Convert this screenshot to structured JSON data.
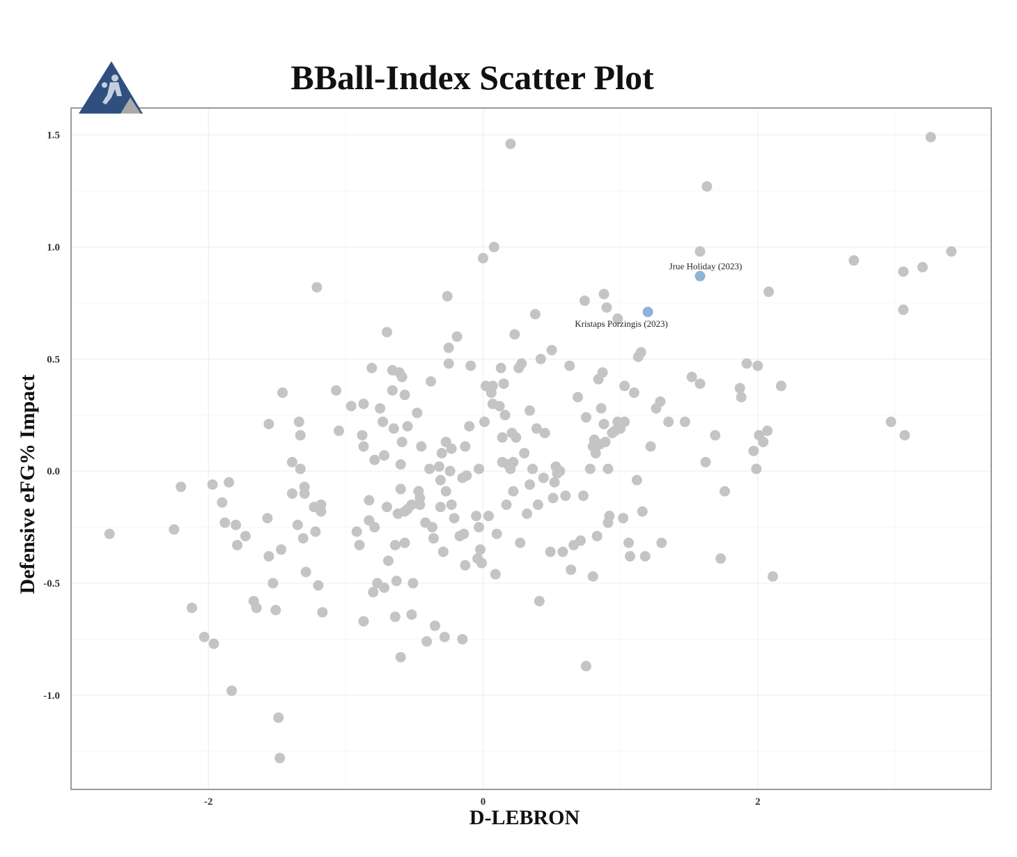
{
  "chart_data": {
    "type": "scatter",
    "title": "BBall-Index Scatter Plot",
    "xlabel": "D-LEBRON",
    "ylabel": "Defensive eFG% Impact",
    "xlim": [
      -3.0,
      3.7
    ],
    "ylim": [
      -1.42,
      1.62
    ],
    "xticks": [
      -2,
      0,
      2
    ],
    "yticks": [
      1.5,
      1.0,
      0.5,
      0.0,
      -0.5,
      -1.0
    ],
    "xtick_labels": [
      "-2",
      "0",
      "2"
    ],
    "ytick_labels": [
      "1.5",
      "1.0",
      "0.5",
      "0.0",
      "-0.5",
      "-1.0"
    ],
    "grid": true,
    "legend": "none",
    "colors": {
      "point": "#c4c4c4",
      "highlight": "#8fb3d8",
      "frame": "#9a9a9a",
      "logo_blue": "#2f4f7f",
      "logo_gray": "#a9a9a9"
    },
    "highlighted": [
      {
        "label": "Jrue Holiday (2023)",
        "x": 1.58,
        "y": 0.87
      },
      {
        "label": "Kristaps Porzingis (2023)",
        "x": 1.2,
        "y": 0.71
      }
    ],
    "points": [
      [
        -2.72,
        -0.28
      ],
      [
        -2.25,
        -0.26
      ],
      [
        -2.2,
        -0.07
      ],
      [
        -2.12,
        -0.61
      ],
      [
        -2.03,
        -0.74
      ],
      [
        -1.96,
        -0.77
      ],
      [
        -1.97,
        -0.06
      ],
      [
        -1.9,
        -0.14
      ],
      [
        -1.88,
        -0.23
      ],
      [
        -1.85,
        -0.05
      ],
      [
        -1.83,
        -0.98
      ],
      [
        -1.8,
        -0.24
      ],
      [
        -1.79,
        -0.33
      ],
      [
        -1.73,
        -0.29
      ],
      [
        -1.67,
        -0.58
      ],
      [
        -1.65,
        -0.61
      ],
      [
        -1.57,
        -0.21
      ],
      [
        -1.56,
        -0.38
      ],
      [
        -1.53,
        -0.5
      ],
      [
        -1.51,
        -0.62
      ],
      [
        -1.49,
        -1.1
      ],
      [
        -1.47,
        -0.35
      ],
      [
        -1.48,
        -1.28
      ],
      [
        -1.46,
        0.35
      ],
      [
        -1.56,
        0.21
      ],
      [
        -1.39,
        0.04
      ],
      [
        -1.39,
        -0.1
      ],
      [
        -1.35,
        -0.24
      ],
      [
        -1.34,
        0.22
      ],
      [
        -1.33,
        0.16
      ],
      [
        -1.33,
        0.01
      ],
      [
        -1.31,
        -0.3
      ],
      [
        -1.3,
        -0.07
      ],
      [
        -1.3,
        -0.1
      ],
      [
        -1.29,
        -0.45
      ],
      [
        -1.23,
        -0.16
      ],
      [
        -1.22,
        -0.27
      ],
      [
        -1.21,
        0.82
      ],
      [
        -1.2,
        -0.51
      ],
      [
        -1.18,
        -0.15
      ],
      [
        -1.18,
        -0.18
      ],
      [
        -1.17,
        -0.63
      ],
      [
        -1.07,
        0.36
      ],
      [
        -1.05,
        0.18
      ],
      [
        -0.96,
        0.29
      ],
      [
        -0.92,
        -0.27
      ],
      [
        -0.9,
        -0.33
      ],
      [
        -0.88,
        0.16
      ],
      [
        -0.87,
        0.11
      ],
      [
        -0.87,
        0.3
      ],
      [
        -0.87,
        -0.67
      ],
      [
        -0.83,
        -0.13
      ],
      [
        -0.83,
        -0.22
      ],
      [
        -0.81,
        0.46
      ],
      [
        -0.8,
        -0.54
      ],
      [
        -0.79,
        0.05
      ],
      [
        -0.79,
        -0.25
      ],
      [
        -0.77,
        -0.5
      ],
      [
        -0.75,
        0.28
      ],
      [
        -0.73,
        0.22
      ],
      [
        -0.72,
        0.07
      ],
      [
        -0.72,
        -0.52
      ],
      [
        -0.7,
        0.62
      ],
      [
        -0.7,
        -0.16
      ],
      [
        -0.69,
        -0.4
      ],
      [
        -0.66,
        0.45
      ],
      [
        -0.66,
        0.36
      ],
      [
        -0.65,
        0.19
      ],
      [
        -0.64,
        -0.33
      ],
      [
        -0.64,
        -0.65
      ],
      [
        -0.63,
        -0.49
      ],
      [
        -0.62,
        -0.19
      ],
      [
        -0.61,
        0.44
      ],
      [
        -0.6,
        0.03
      ],
      [
        -0.6,
        -0.08
      ],
      [
        -0.6,
        -0.83
      ],
      [
        -0.59,
        0.42
      ],
      [
        -0.59,
        0.13
      ],
      [
        -0.57,
        0.34
      ],
      [
        -0.57,
        -0.32
      ],
      [
        -0.57,
        -0.18
      ],
      [
        -0.55,
        -0.17
      ],
      [
        -0.55,
        0.2
      ],
      [
        -0.52,
        -0.15
      ],
      [
        -0.51,
        -0.5
      ],
      [
        -0.52,
        -0.64
      ],
      [
        -0.48,
        0.26
      ],
      [
        -0.47,
        -0.09
      ],
      [
        -0.46,
        -0.12
      ],
      [
        -0.46,
        -0.15
      ],
      [
        -0.45,
        0.11
      ],
      [
        -0.42,
        -0.23
      ],
      [
        -0.41,
        -0.76
      ],
      [
        -0.39,
        0.01
      ],
      [
        -0.38,
        0.4
      ],
      [
        -0.37,
        -0.25
      ],
      [
        -0.36,
        -0.3
      ],
      [
        -0.35,
        -0.69
      ],
      [
        -0.32,
        0.02
      ],
      [
        -0.31,
        -0.16
      ],
      [
        -0.31,
        -0.04
      ],
      [
        -0.3,
        0.08
      ],
      [
        -0.29,
        -0.36
      ],
      [
        -0.28,
        -0.74
      ],
      [
        -0.27,
        0.13
      ],
      [
        -0.27,
        -0.09
      ],
      [
        -0.26,
        0.78
      ],
      [
        -0.25,
        0.55
      ],
      [
        -0.25,
        0.48
      ],
      [
        -0.24,
        0.0
      ],
      [
        -0.23,
        0.1
      ],
      [
        -0.23,
        -0.15
      ],
      [
        -0.21,
        -0.21
      ],
      [
        -0.19,
        0.6
      ],
      [
        -0.17,
        -0.29
      ],
      [
        -0.15,
        -0.03
      ],
      [
        -0.15,
        -0.75
      ],
      [
        -0.14,
        -0.28
      ],
      [
        -0.13,
        0.11
      ],
      [
        -0.13,
        -0.42
      ],
      [
        -0.12,
        -0.02
      ],
      [
        -0.1,
        0.2
      ],
      [
        -0.09,
        0.47
      ],
      [
        -0.05,
        -0.2
      ],
      [
        -0.03,
        0.01
      ],
      [
        -0.03,
        -0.25
      ],
      [
        -0.04,
        -0.39
      ],
      [
        -0.02,
        -0.35
      ],
      [
        -0.01,
        -0.41
      ],
      [
        0.01,
        0.22
      ],
      [
        0.02,
        0.38
      ],
      [
        0.04,
        -0.2
      ],
      [
        0.06,
        0.35
      ],
      [
        0.07,
        0.3
      ],
      [
        0.07,
        0.38
      ],
      [
        0.1,
        -0.28
      ],
      [
        0.09,
        -0.46
      ],
      [
        0.08,
        1.0
      ],
      [
        0.12,
        0.29
      ],
      [
        0.13,
        0.46
      ],
      [
        0.14,
        0.15
      ],
      [
        0.14,
        0.04
      ],
      [
        0.15,
        0.39
      ],
      [
        0.16,
        0.25
      ],
      [
        0.17,
        -0.15
      ],
      [
        0.18,
        0.03
      ],
      [
        0.2,
        0.01
      ],
      [
        0.21,
        0.17
      ],
      [
        0.22,
        -0.09
      ],
      [
        0.22,
        0.04
      ],
      [
        0.23,
        0.61
      ],
      [
        0.24,
        0.15
      ],
      [
        0.26,
        0.46
      ],
      [
        0.27,
        -0.32
      ],
      [
        0.28,
        0.48
      ],
      [
        0.3,
        0.08
      ],
      [
        0.32,
        -0.19
      ],
      [
        0.34,
        0.27
      ],
      [
        0.34,
        -0.06
      ],
      [
        0.36,
        0.01
      ],
      [
        0.38,
        0.7
      ],
      [
        0.39,
        0.19
      ],
      [
        0.4,
        -0.15
      ],
      [
        0.41,
        -0.58
      ],
      [
        0.42,
        0.5
      ],
      [
        0.44,
        -0.03
      ],
      [
        0.45,
        0.17
      ],
      [
        0.49,
        -0.36
      ],
      [
        0.5,
        0.54
      ],
      [
        0.51,
        -0.12
      ],
      [
        0.52,
        -0.05
      ],
      [
        0.53,
        0.02
      ],
      [
        0.54,
        -0.01
      ],
      [
        0.56,
        0.0
      ],
      [
        0.58,
        -0.36
      ],
      [
        0.6,
        -0.11
      ],
      [
        0.63,
        0.47
      ],
      [
        0.64,
        -0.44
      ],
      [
        0.66,
        -0.33
      ],
      [
        0.69,
        0.33
      ],
      [
        0.71,
        -0.31
      ],
      [
        0.73,
        -0.11
      ],
      [
        0.74,
        0.76
      ],
      [
        0.75,
        0.24
      ],
      [
        0.75,
        -0.87
      ],
      [
        0.78,
        0.01
      ],
      [
        0.8,
        0.11
      ],
      [
        0.8,
        -0.47
      ],
      [
        0.81,
        0.14
      ],
      [
        0.82,
        0.08
      ],
      [
        0.83,
        -0.29
      ],
      [
        0.84,
        0.41
      ],
      [
        0.85,
        0.12
      ],
      [
        0.86,
        0.28
      ],
      [
        0.87,
        0.44
      ],
      [
        0.88,
        0.21
      ],
      [
        0.88,
        0.79
      ],
      [
        0.89,
        0.13
      ],
      [
        0.9,
        0.73
      ],
      [
        0.91,
        -0.23
      ],
      [
        0.91,
        0.01
      ],
      [
        0.92,
        -0.2
      ],
      [
        0.94,
        0.17
      ],
      [
        0.96,
        0.18
      ],
      [
        0.98,
        0.22
      ],
      [
        1.0,
        0.19
      ],
      [
        1.02,
        -0.21
      ],
      [
        1.03,
        0.22
      ],
      [
        1.03,
        0.38
      ],
      [
        1.06,
        -0.32
      ],
      [
        1.07,
        -0.38
      ],
      [
        1.1,
        0.35
      ],
      [
        1.12,
        -0.04
      ],
      [
        1.13,
        0.51
      ],
      [
        1.15,
        0.53
      ],
      [
        1.16,
        -0.18
      ],
      [
        1.18,
        -0.38
      ],
      [
        1.22,
        0.11
      ],
      [
        1.26,
        0.28
      ],
      [
        1.29,
        0.31
      ],
      [
        1.3,
        -0.32
      ],
      [
        1.35,
        0.22
      ],
      [
        1.47,
        0.22
      ],
      [
        1.52,
        0.42
      ],
      [
        1.58,
        0.39
      ],
      [
        1.58,
        0.98
      ],
      [
        1.62,
        0.04
      ],
      [
        1.63,
        1.27
      ],
      [
        1.69,
        0.16
      ],
      [
        1.73,
        -0.39
      ],
      [
        1.76,
        -0.09
      ],
      [
        1.87,
        0.37
      ],
      [
        1.88,
        0.33
      ],
      [
        1.92,
        0.48
      ],
      [
        1.97,
        0.09
      ],
      [
        1.99,
        0.01
      ],
      [
        2.0,
        0.47
      ],
      [
        2.01,
        0.16
      ],
      [
        2.04,
        0.13
      ],
      [
        2.07,
        0.18
      ],
      [
        2.08,
        0.8
      ],
      [
        2.11,
        -0.47
      ],
      [
        2.17,
        0.38
      ],
      [
        2.7,
        0.94
      ],
      [
        2.97,
        0.22
      ],
      [
        3.06,
        0.89
      ],
      [
        3.06,
        0.72
      ],
      [
        3.07,
        0.16
      ],
      [
        3.2,
        0.91
      ],
      [
        3.26,
        1.49
      ],
      [
        3.41,
        0.98
      ],
      [
        0.2,
        1.46
      ],
      [
        0.0,
        0.95
      ],
      [
        0.98,
        0.68
      ]
    ]
  }
}
